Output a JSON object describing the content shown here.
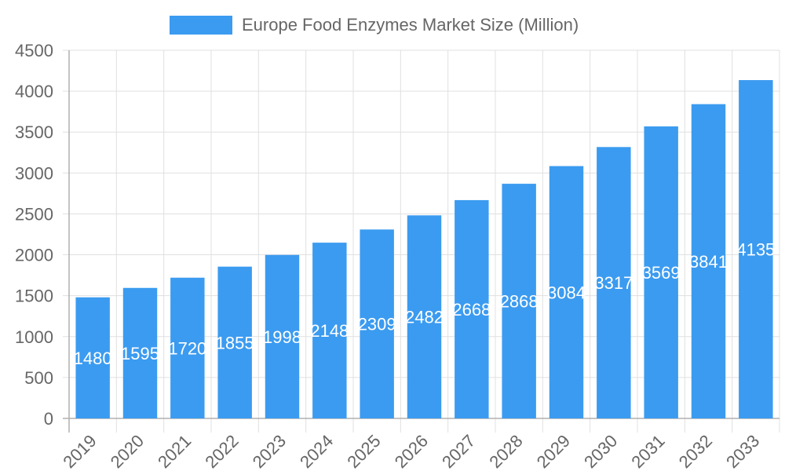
{
  "chart_data": {
    "type": "bar",
    "title": "",
    "xlabel": "",
    "ylabel": "",
    "legend": {
      "position": "top",
      "entries": [
        {
          "label": "Europe Food Enzymes Market Size (Million)",
          "color": "#3b9bf0"
        }
      ]
    },
    "categories": [
      "2019",
      "2020",
      "2021",
      "2022",
      "2023",
      "2024",
      "2025",
      "2026",
      "2027",
      "2028",
      "2029",
      "2030",
      "2031",
      "2032",
      "2033"
    ],
    "series": [
      {
        "name": "Europe Food Enzymes Market Size (Million)",
        "color": "#3b9bf0",
        "values": [
          1480,
          1595,
          1720,
          1855,
          1998,
          2148,
          2309,
          2482,
          2668,
          2868,
          3084,
          3317,
          3569,
          3841,
          4135
        ]
      }
    ],
    "ylim": [
      0,
      4500
    ],
    "yticks": [
      0,
      500,
      1000,
      1500,
      2000,
      2500,
      3000,
      3500,
      4000,
      4500
    ],
    "grid": true,
    "data_labels": true
  },
  "colors": {
    "bar": "#3b9bf0",
    "grid": "#e0e0e0",
    "axis": "#b0b0b0",
    "text": "#666666",
    "label": "#ffffff"
  }
}
